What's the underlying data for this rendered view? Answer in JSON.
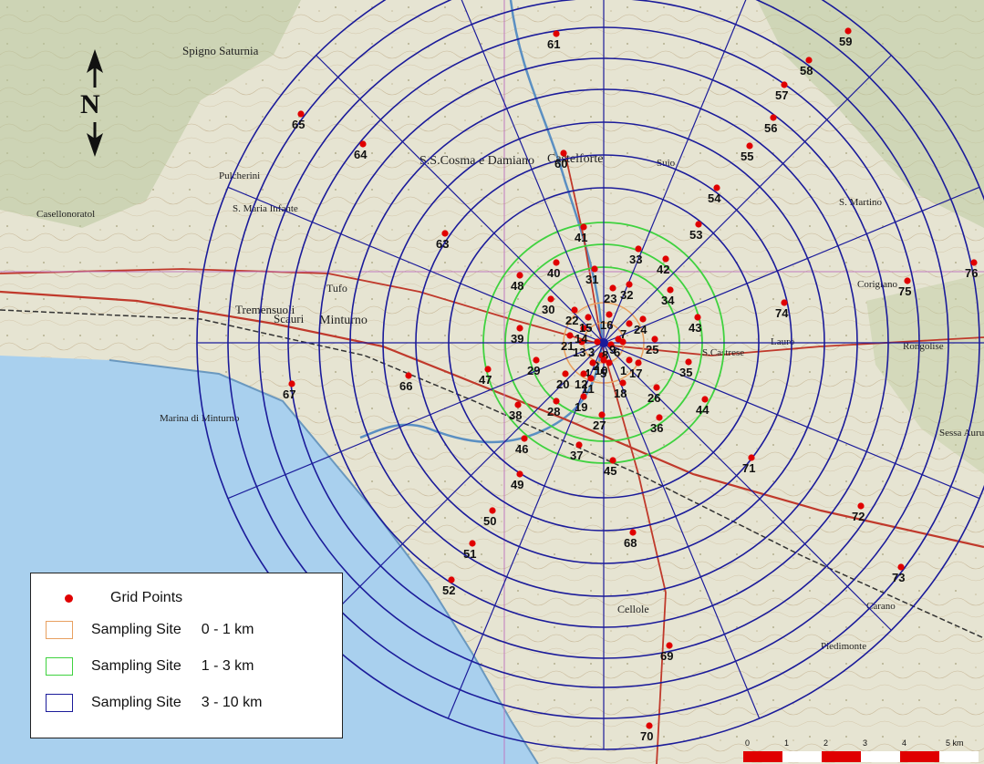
{
  "map": {
    "center": "Ss. Cosma e Damiano - Minturno area",
    "north_letter": "N",
    "ring_colors": {
      "inner": "#e8a060",
      "middle": "#3fd23f",
      "outer": "#1b1b9a"
    },
    "point_color": "#e00000",
    "grid_line_color": "#1b1b9a",
    "place_names": [
      "Spigno Saturnia",
      "Castelforte",
      "S.S.Cosma e Damiano",
      "Minturno",
      "Scauri",
      "Tufo",
      "Tremensuoli",
      "Marina di Minturno",
      "Casellonoratol",
      "S. Maria Infante",
      "Pulcherini",
      "S. Martino",
      "Lauro",
      "Coriglano",
      "Rongolise",
      "Cellole",
      "Piedimonte",
      "Carano",
      "Sessa Aurunca",
      "Suio",
      "S.Castrese"
    ],
    "grid_points": [
      {
        "n": "1"
      },
      {
        "n": "2"
      },
      {
        "n": "3"
      },
      {
        "n": "4"
      },
      {
        "n": "5"
      },
      {
        "n": "6"
      },
      {
        "n": "7"
      },
      {
        "n": "8"
      },
      {
        "n": "9"
      },
      {
        "n": "10"
      },
      {
        "n": "11"
      },
      {
        "n": "12"
      },
      {
        "n": "13"
      },
      {
        "n": "14"
      },
      {
        "n": "15"
      },
      {
        "n": "16"
      },
      {
        "n": "17"
      },
      {
        "n": "18"
      },
      {
        "n": "19"
      },
      {
        "n": "20"
      },
      {
        "n": "21"
      },
      {
        "n": "22"
      },
      {
        "n": "23"
      },
      {
        "n": "24"
      },
      {
        "n": "25"
      },
      {
        "n": "26"
      },
      {
        "n": "27"
      },
      {
        "n": "28"
      },
      {
        "n": "29"
      },
      {
        "n": "30"
      },
      {
        "n": "31"
      },
      {
        "n": "32"
      },
      {
        "n": "33"
      },
      {
        "n": "34"
      },
      {
        "n": "35"
      },
      {
        "n": "36"
      },
      {
        "n": "37"
      },
      {
        "n": "38"
      },
      {
        "n": "39"
      },
      {
        "n": "40"
      },
      {
        "n": "41"
      },
      {
        "n": "42"
      },
      {
        "n": "43"
      },
      {
        "n": "44"
      },
      {
        "n": "45"
      },
      {
        "n": "46"
      },
      {
        "n": "47"
      },
      {
        "n": "48"
      },
      {
        "n": "49"
      },
      {
        "n": "50"
      },
      {
        "n": "51"
      },
      {
        "n": "52"
      },
      {
        "n": "53"
      },
      {
        "n": "54"
      },
      {
        "n": "55"
      },
      {
        "n": "56"
      },
      {
        "n": "57"
      },
      {
        "n": "58"
      },
      {
        "n": "59"
      },
      {
        "n": "60"
      },
      {
        "n": "61"
      },
      {
        "n": "63"
      },
      {
        "n": "64"
      },
      {
        "n": "65"
      },
      {
        "n": "66"
      },
      {
        "n": "67"
      },
      {
        "n": "68"
      },
      {
        "n": "69"
      },
      {
        "n": "70"
      },
      {
        "n": "71"
      },
      {
        "n": "72"
      },
      {
        "n": "73"
      },
      {
        "n": "74"
      },
      {
        "n": "75"
      },
      {
        "n": "76"
      }
    ]
  },
  "legend": {
    "grid_points_label": "Grid Points",
    "rows": [
      {
        "label": "Sampling  Site",
        "range": "0 - 1 km",
        "color": "#e8a060"
      },
      {
        "label": "Sampling  Site",
        "range": "1 - 3 km",
        "color": "#3fd23f"
      },
      {
        "label": "Sampling  Site",
        "range": "3 - 10 km",
        "color": "#1b1b9a"
      }
    ]
  },
  "scale": {
    "ticks": [
      "0",
      "1",
      "2",
      "3",
      "4",
      "5 km"
    ],
    "colors": [
      "#e00000",
      "#ffffff"
    ]
  }
}
